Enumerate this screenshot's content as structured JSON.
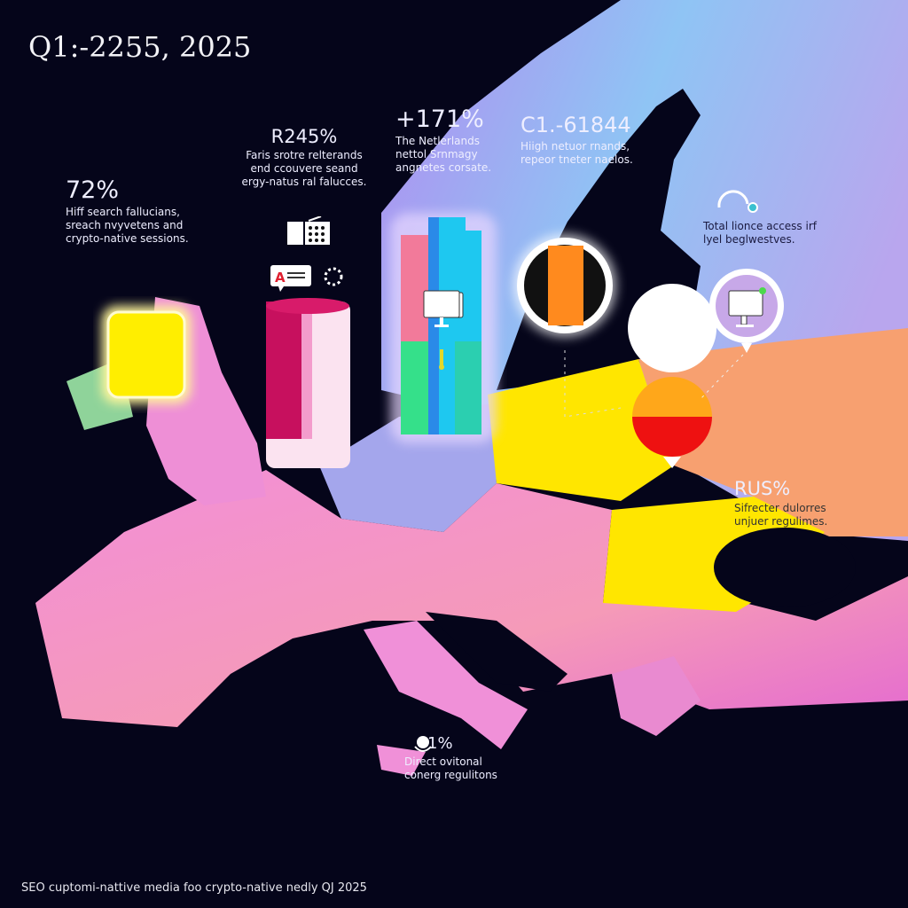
{
  "title": "Q1:-2255, 2025",
  "footer": "SEO cuptomi-nattive media foo  crypto-native nedly QJ 2025",
  "annotations": [
    {
      "value": "72%",
      "lines": [
        "Hiff search fallucians,",
        "sreach nvyvetens and",
        "crypto-native sessions."
      ]
    },
    {
      "value": "R245%",
      "lines": [
        "Faris srotre relterands",
        "end ccouvere seand",
        "ergy-natus ral falucces."
      ]
    },
    {
      "value": "+171%",
      "lines": [
        "The Netlerlands",
        "nettol Srnmagy",
        "angnetes corsate."
      ]
    },
    {
      "value": "C1.-61844",
      "lines": [
        "Hiigh netuor rnands,",
        "repeor tneter naelos."
      ]
    },
    {
      "value": "",
      "lines": [
        "Total lionce access irf",
        "lyel beglwestves."
      ]
    },
    {
      "value": "RUS%",
      "lines": [
        "Sifrecter dulorres",
        "unjuer regulimes."
      ]
    },
    {
      "value": "1%",
      "lines": [
        "Direct ovitonal",
        "conerg regulitons"
      ]
    }
  ],
  "icons": [
    "calculator-icon",
    "text-bubble-icon",
    "spinner-icon",
    "monitor-icon",
    "tag-icon",
    "search-ring-icon",
    "monitor-pin-icon"
  ],
  "colors": {
    "background": "#05051a",
    "yellow": "#ffe600",
    "pink": "#f28ed8",
    "orange": "#ff8a1e",
    "red": "#ee1111",
    "cyan": "#1ec8f0",
    "green": "#35e08a",
    "lavender": "#a9a2ee",
    "sky": "#86c6f2"
  }
}
